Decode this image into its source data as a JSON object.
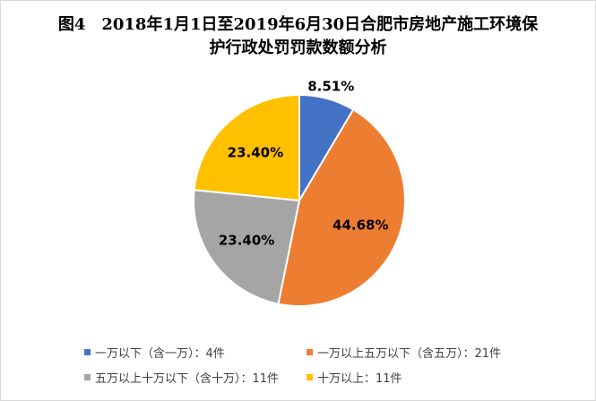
{
  "chart_data": {
    "type": "pie",
    "title": "图4　2018年1月1日至2019年6月30日合肥市房地产施工环境保护行政处罚罚款数额分析",
    "title_lines": [
      "图4　2018年1月1日至2019年6月30日合肥市房地产施工环境保",
      "护行政处罚罚款数额分析"
    ],
    "slices": [
      {
        "name": "一万以下（含一万）：4件",
        "count": 4,
        "percent": 8.51,
        "label": "8.51%",
        "color": "#4472C4"
      },
      {
        "name": "一万以上五万以下（含五万）：21件",
        "count": 21,
        "percent": 44.68,
        "label": "44.68%",
        "color": "#ED7D31"
      },
      {
        "name": "五万以上十万以下（含十万）：11件",
        "count": 11,
        "percent": 23.4,
        "label": "23.40%",
        "color": "#A5A5A5"
      },
      {
        "name": "十万以上：11件",
        "count": 11,
        "percent": 23.4,
        "label": "23.40%",
        "color": "#FFC000"
      }
    ],
    "legend_position": "bottom"
  }
}
